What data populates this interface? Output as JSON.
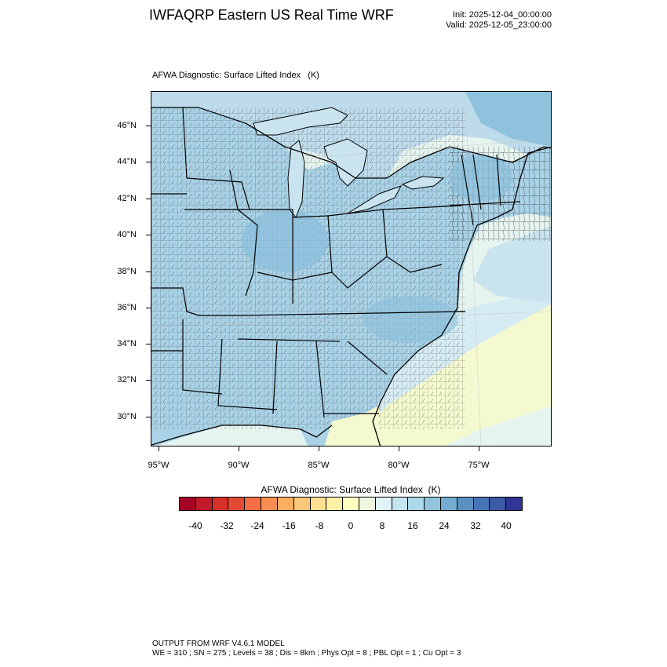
{
  "header": {
    "title": "IWFAQRP Eastern US Real Time WRF",
    "init": "Init: 2025-12-04_00:00:00",
    "valid": "Valid: 2025-12-05_23:00:00"
  },
  "map": {
    "title": "AFWA Diagnostic: Surface Lifted Index   (K)",
    "lat_labels": [
      "46°N",
      "44°N",
      "42°N",
      "40°N",
      "38°N",
      "36°N",
      "34°N",
      "32°N",
      "30°N"
    ],
    "lon_labels": [
      "95°W",
      "90°W",
      "85°W",
      "80°W",
      "75°W"
    ],
    "colors": {
      "land_blue": "#a9d2e6",
      "land_deep": "#8cbfdc",
      "lake": "#c9e4ef",
      "ocean_light": "#d6ecf3",
      "ocean_blue": "#a3d0e4",
      "ocean_green": "#e6f4ef",
      "ocean_yellow": "#f5f9cf",
      "north_region": "#a2cde3",
      "boundary": "#000000"
    }
  },
  "colorbar": {
    "title": "AFWA Diagnostic: Surface Lifted Index  (K)",
    "tick_labels": [
      "-40",
      "-32",
      "-24",
      "-16",
      "-8",
      "0",
      "8",
      "16",
      "24",
      "32",
      "40"
    ],
    "colors": [
      "#a50026",
      "#c11a2a",
      "#d73027",
      "#e34a33",
      "#f46d43",
      "#f88d51",
      "#fdae61",
      "#fec87a",
      "#fee090",
      "#fff0a8",
      "#ffffbf",
      "#eef8e0",
      "#e0f3f8",
      "#c4e5f0",
      "#abd9e9",
      "#91c3dd",
      "#74add1",
      "#5b91c2",
      "#4575b4",
      "#3c5aa5",
      "#313695"
    ]
  },
  "footer": {
    "line1": "OUTPUT FROM WRF V4.6.1 MODEL",
    "line2": "WE = 310 ; SN = 275 ; Levels = 38 ; Dis = 8km ; Phys Opt = 8 ; PBL Opt = 1 ; Cu Opt = 3"
  }
}
